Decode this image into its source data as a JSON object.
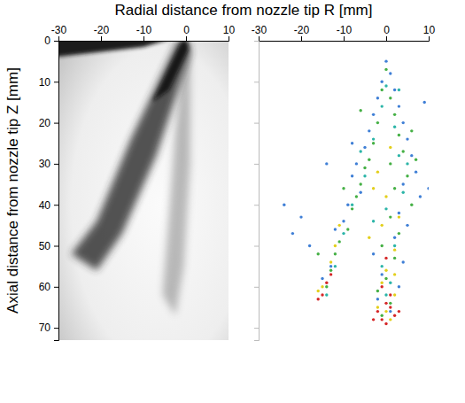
{
  "chart_data": [
    {
      "type": "image",
      "xlabel": "Radial distance from nozzle tip R [mm]",
      "ylabel": "Axial distance from nozzle tip Z [mm]",
      "xlim": [
        -30,
        10
      ],
      "xticks": [
        -30,
        -20,
        -10,
        0,
        10
      ],
      "ylim": [
        0,
        73
      ],
      "yticks": [
        0,
        10,
        20,
        30,
        40,
        50,
        60,
        70
      ]
    },
    {
      "type": "scatter",
      "xlim": [
        -30,
        10
      ],
      "xticks": [
        -30,
        -20,
        -10,
        0,
        10
      ],
      "ylim": [
        0,
        73
      ],
      "yticks": [
        0,
        10,
        20,
        30,
        40,
        50,
        60,
        70
      ],
      "tick_labels": "x",
      "series": [
        {
          "color": "#3f7fd6",
          "x": [
            0,
            1,
            -1,
            2,
            -2,
            3,
            -3,
            4,
            -4,
            5,
            -5,
            6,
            -7,
            7,
            -8,
            4,
            -6,
            8,
            -9,
            3,
            -10,
            5,
            -12,
            2,
            -20,
            -22,
            -18,
            -3,
            4,
            -13,
            -1,
            3,
            -15,
            -2,
            1,
            -8,
            9,
            -14,
            10,
            -24
          ],
          "values": [
            5,
            8,
            10,
            12,
            14,
            16,
            18,
            20,
            22,
            24,
            26,
            28,
            30,
            32,
            33,
            35,
            37,
            38,
            40,
            42,
            44,
            45,
            46,
            48,
            43,
            47,
            50,
            52,
            54,
            55,
            57,
            60,
            58,
            63,
            66,
            25,
            15,
            30,
            36,
            40
          ]
        },
        {
          "color": "#2cb5a8",
          "x": [
            0,
            -1,
            2,
            -3,
            3,
            -5,
            4,
            -8,
            0,
            -10,
            2,
            -12,
            -1,
            1,
            -14,
            0,
            -3,
            5,
            -6,
            3
          ],
          "values": [
            11,
            16,
            21,
            24,
            28,
            33,
            37,
            40,
            41,
            47,
            50,
            55,
            55,
            59,
            62,
            62,
            44,
            30,
            27,
            12
          ]
        },
        {
          "color": "#45b045",
          "x": [
            0,
            -1,
            1,
            2,
            -2,
            3,
            -3,
            4,
            -4,
            1,
            -5,
            5,
            -6,
            2,
            -7,
            6,
            -8,
            1,
            -9,
            3,
            -11,
            -1,
            -12,
            2,
            -13,
            0,
            -14,
            -2,
            1,
            -1,
            -16,
            6,
            -6,
            -10,
            7
          ],
          "values": [
            7,
            12,
            14,
            18,
            20,
            23,
            25,
            27,
            29,
            30,
            31,
            33,
            35,
            36,
            38,
            40,
            41,
            43,
            46,
            47,
            49,
            50,
            52,
            53,
            56,
            58,
            60,
            61,
            64,
            67,
            52,
            22,
            17,
            36,
            29
          ]
        },
        {
          "color": "#e3cf1c",
          "x": [
            1,
            -2,
            0,
            -1,
            2,
            -12,
            -13,
            0,
            -1,
            2,
            -2,
            1,
            -15,
            -11,
            3,
            -4,
            0,
            -16,
            2,
            -3
          ],
          "values": [
            26,
            32,
            38,
            45,
            51,
            50,
            54,
            56,
            59,
            62,
            65,
            68,
            60,
            45,
            43,
            48,
            66,
            61,
            57,
            36
          ]
        },
        {
          "color": "#d62728",
          "x": [
            -1,
            1,
            0,
            -2,
            2,
            0,
            -1,
            1,
            -14,
            -15,
            -13,
            -16,
            -3,
            3,
            0
          ],
          "values": [
            60,
            62,
            64,
            66,
            67,
            69,
            68,
            65,
            59,
            62,
            57,
            63,
            68,
            66,
            53
          ]
        }
      ]
    }
  ]
}
